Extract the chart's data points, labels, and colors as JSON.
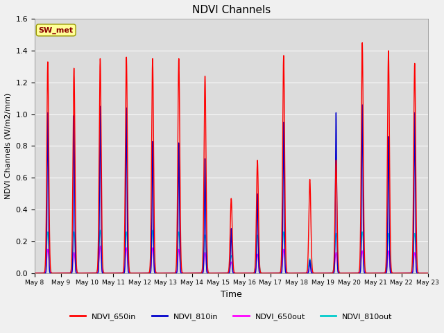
{
  "title": "NDVI Channels",
  "xlabel": "Time",
  "ylabel": "NDVI Channels (W/m2/mm)",
  "annotation_text": "SW_met",
  "annotation_color": "#8B0000",
  "annotation_bg": "#FFFF99",
  "ylim": [
    0,
    1.6
  ],
  "bg_color": "#dcdcdc",
  "fig_bg_color": "#f0f0f0",
  "legend": [
    {
      "label": "NDVI_650in",
      "color": "#FF0000"
    },
    {
      "label": "NDVI_810in",
      "color": "#0000CC"
    },
    {
      "label": "NDVI_650out",
      "color": "#FF00FF"
    },
    {
      "label": "NDVI_810out",
      "color": "#00CCCC"
    }
  ],
  "peak_650in": [
    1.33,
    1.29,
    1.35,
    1.36,
    1.35,
    1.35,
    1.24,
    0.47,
    0.71,
    1.37,
    0.59,
    0.71,
    1.45,
    1.4,
    1.32
  ],
  "peak_810in": [
    1.01,
    0.99,
    1.05,
    1.04,
    0.83,
    0.82,
    0.72,
    0.28,
    0.5,
    0.95,
    0.08,
    1.01,
    1.06,
    0.86,
    1.01
  ],
  "peak_650out": [
    0.15,
    0.13,
    0.17,
    0.16,
    0.16,
    0.15,
    0.13,
    0.07,
    0.12,
    0.15,
    0.05,
    0.13,
    0.14,
    0.14,
    0.13
  ],
  "peak_810out": [
    0.26,
    0.26,
    0.27,
    0.26,
    0.27,
    0.26,
    0.24,
    0.11,
    0.24,
    0.26,
    0.09,
    0.25,
    0.26,
    0.25,
    0.25
  ],
  "sigma_650in": 0.9,
  "sigma_810in": 0.55,
  "sigma_650out": 0.9,
  "sigma_810out": 1.1,
  "peak_hour_in_day": 12,
  "n_days": 15,
  "hours_per_day": 24,
  "xtick_labels": [
    "May 8",
    "May 9",
    "May 10",
    "May 11",
    "May 12",
    "May 13",
    "May 14",
    "May 15",
    "May 16",
    "May 17",
    "May 18",
    "May 19",
    "May 20",
    "May 21",
    "May 22",
    "May 23"
  ]
}
